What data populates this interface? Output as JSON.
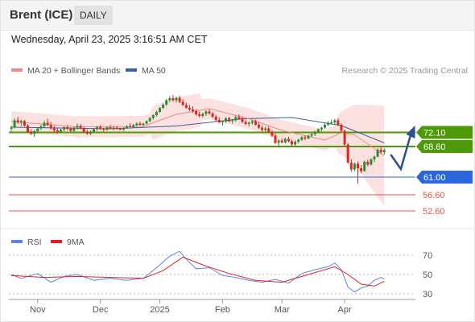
{
  "header": {
    "instrument": "Brent (ICE)",
    "timeframe": "DAILY",
    "datetime": "Wednesday, April 23, 2025 3:16:51 AM CET"
  },
  "legend": {
    "ma20_bb": "MA 20 + Bollinger Bands",
    "ma50": "MA 50",
    "credit": "Research © 2025 Trading Central",
    "rsi": "RSI",
    "rsi_ma": "9MA"
  },
  "colors": {
    "bull": "#2e8b2e",
    "bear": "#d9281e",
    "ma20": "#ee8888",
    "ma50": "#3a5fa6",
    "band_fill": "#fbdcdc",
    "green_level": "#4e9a06",
    "blue_level": "#2a66dd",
    "red_level": "#e85050",
    "rsi_line": "#5a86e0",
    "rsi_ma_line": "#e02020",
    "arrow": "#2b4f8f"
  },
  "chart_data": {
    "type": "candlestick",
    "y_range": [
      47.8,
      84.8
    ],
    "x_ticks": [
      "Nov",
      "Dec",
      "2025",
      "Feb",
      "Mar",
      "Apr"
    ],
    "levels": [
      {
        "value": 72.1,
        "label": "72.10",
        "kind": "resistance"
      },
      {
        "value": 68.6,
        "label": "68.60",
        "kind": "resistance"
      },
      {
        "value": 61.0,
        "label": "61.00",
        "kind": "pivot"
      },
      {
        "value": 56.6,
        "label": "56.60",
        "kind": "support"
      },
      {
        "value": 52.6,
        "label": "52.60",
        "kind": "support"
      }
    ],
    "scenario_path": [
      [
        0,
        66.6
      ],
      [
        3,
        63.0
      ],
      [
        6,
        71.8
      ]
    ],
    "candles": [
      [
        73.0,
        73.8,
        72.3,
        73.3
      ],
      [
        73.3,
        75.6,
        73.1,
        75.1
      ],
      [
        75.1,
        76.0,
        74.2,
        74.6
      ],
      [
        74.6,
        75.3,
        73.7,
        74.9
      ],
      [
        74.9,
        75.2,
        73.6,
        73.8
      ],
      [
        73.8,
        74.1,
        72.0,
        72.2
      ],
      [
        72.2,
        72.9,
        71.4,
        71.8
      ],
      [
        71.8,
        72.7,
        71.0,
        72.4
      ],
      [
        72.4,
        73.3,
        72.0,
        73.1
      ],
      [
        73.1,
        74.0,
        72.7,
        73.6
      ],
      [
        73.6,
        75.0,
        73.2,
        74.5
      ],
      [
        74.5,
        75.5,
        73.7,
        73.9
      ],
      [
        73.9,
        74.7,
        72.8,
        73.1
      ],
      [
        73.1,
        73.8,
        72.0,
        72.6
      ],
      [
        72.6,
        73.1,
        71.8,
        72.3
      ],
      [
        72.3,
        73.0,
        71.9,
        72.8
      ],
      [
        72.8,
        73.6,
        72.4,
        73.4
      ],
      [
        73.4,
        73.9,
        72.6,
        73.0
      ],
      [
        73.0,
        73.4,
        72.3,
        72.5
      ],
      [
        72.5,
        73.5,
        72.3,
        73.3
      ],
      [
        73.3,
        74.3,
        72.8,
        73.7
      ],
      [
        73.7,
        74.2,
        72.8,
        73.1
      ],
      [
        73.1,
        73.5,
        72.0,
        72.3
      ],
      [
        72.3,
        72.8,
        71.5,
        71.8
      ],
      [
        71.8,
        72.6,
        71.4,
        72.2
      ],
      [
        72.2,
        73.2,
        72.0,
        72.9
      ],
      [
        72.9,
        73.6,
        72.5,
        73.5
      ],
      [
        73.5,
        73.9,
        72.7,
        73.0
      ],
      [
        73.0,
        73.3,
        72.3,
        72.8
      ],
      [
        72.8,
        73.5,
        72.5,
        73.4
      ],
      [
        73.4,
        73.9,
        72.9,
        73.1
      ],
      [
        73.1,
        73.7,
        72.6,
        73.3
      ],
      [
        73.3,
        73.7,
        72.8,
        73.0
      ],
      [
        73.0,
        73.3,
        72.6,
        72.8
      ],
      [
        72.8,
        73.4,
        72.5,
        73.2
      ],
      [
        73.2,
        73.9,
        73.0,
        73.6
      ],
      [
        73.6,
        74.4,
        73.2,
        73.4
      ],
      [
        73.4,
        74.2,
        73.2,
        73.9
      ],
      [
        73.9,
        74.6,
        73.6,
        74.3
      ],
      [
        74.3,
        74.8,
        73.8,
        74.0
      ],
      [
        74.0,
        74.5,
        73.6,
        74.3
      ],
      [
        74.3,
        75.1,
        74.1,
        74.9
      ],
      [
        74.9,
        75.9,
        74.6,
        75.7
      ],
      [
        75.7,
        76.6,
        75.3,
        76.4
      ],
      [
        76.4,
        77.5,
        76.0,
        77.2
      ],
      [
        77.2,
        78.4,
        77.0,
        78.2
      ],
      [
        78.2,
        79.3,
        77.9,
        79.0
      ],
      [
        79.0,
        80.4,
        78.7,
        80.1
      ],
      [
        80.1,
        81.1,
        79.6,
        80.6
      ],
      [
        80.6,
        81.4,
        79.8,
        80.1
      ],
      [
        80.1,
        81.0,
        79.5,
        80.7
      ],
      [
        80.7,
        81.2,
        79.4,
        79.7
      ],
      [
        79.7,
        80.3,
        78.7,
        78.9
      ],
      [
        78.9,
        79.5,
        78.0,
        78.2
      ],
      [
        78.2,
        78.9,
        77.4,
        77.8
      ],
      [
        77.8,
        78.6,
        77.0,
        77.4
      ],
      [
        77.4,
        77.9,
        76.3,
        76.6
      ],
      [
        76.6,
        77.3,
        75.8,
        76.2
      ],
      [
        76.2,
        77.0,
        75.8,
        76.7
      ],
      [
        76.7,
        77.6,
        76.2,
        77.3
      ],
      [
        77.3,
        77.8,
        76.5,
        76.8
      ],
      [
        76.8,
        77.2,
        75.7,
        76.0
      ],
      [
        76.0,
        76.5,
        74.8,
        75.2
      ],
      [
        75.2,
        75.8,
        74.4,
        74.6
      ],
      [
        74.6,
        75.1,
        73.8,
        74.8
      ],
      [
        74.8,
        75.9,
        74.5,
        75.6
      ],
      [
        75.6,
        76.0,
        74.6,
        74.9
      ],
      [
        74.9,
        75.5,
        74.3,
        75.1
      ],
      [
        75.1,
        76.3,
        74.8,
        75.9
      ],
      [
        75.9,
        76.6,
        75.2,
        75.5
      ],
      [
        75.5,
        76.0,
        74.4,
        74.7
      ],
      [
        74.7,
        75.3,
        73.9,
        74.2
      ],
      [
        74.2,
        74.8,
        73.5,
        74.5
      ],
      [
        74.5,
        75.2,
        74.0,
        74.9
      ],
      [
        74.9,
        75.3,
        73.8,
        74.0
      ],
      [
        74.0,
        74.6,
        73.0,
        73.3
      ],
      [
        73.3,
        73.9,
        72.3,
        72.7
      ],
      [
        72.7,
        73.5,
        72.2,
        73.1
      ],
      [
        73.1,
        73.6,
        72.0,
        72.2
      ],
      [
        72.2,
        72.7,
        71.0,
        71.3
      ],
      [
        71.3,
        71.8,
        69.2,
        69.5
      ],
      [
        69.5,
        70.4,
        68.8,
        70.1
      ],
      [
        70.1,
        70.6,
        69.3,
        69.6
      ],
      [
        69.6,
        70.8,
        69.3,
        70.5
      ],
      [
        70.5,
        71.0,
        69.6,
        69.9
      ],
      [
        69.9,
        70.3,
        68.7,
        69.1
      ],
      [
        69.1,
        70.2,
        68.8,
        69.8
      ],
      [
        69.8,
        70.5,
        69.4,
        70.3
      ],
      [
        70.3,
        71.2,
        70.0,
        70.9
      ],
      [
        70.9,
        71.4,
        70.2,
        70.6
      ],
      [
        70.6,
        71.5,
        70.4,
        71.3
      ],
      [
        71.3,
        72.0,
        70.9,
        71.7
      ],
      [
        71.7,
        72.5,
        71.2,
        72.2
      ],
      [
        72.2,
        73.1,
        71.9,
        72.9
      ],
      [
        72.9,
        73.5,
        72.3,
        73.3
      ],
      [
        73.3,
        74.3,
        73.0,
        74.0
      ],
      [
        74.0,
        74.9,
        73.7,
        74.5
      ],
      [
        74.5,
        75.3,
        74.0,
        74.6
      ],
      [
        74.6,
        75.5,
        74.2,
        75.1
      ],
      [
        75.1,
        75.6,
        73.7,
        74.0
      ],
      [
        74.0,
        74.4,
        72.2,
        72.5
      ],
      [
        72.5,
        72.8,
        68.7,
        69.1
      ],
      [
        69.1,
        69.4,
        64.3,
        64.6
      ],
      [
        64.6,
        65.4,
        62.3,
        62.9
      ],
      [
        62.9,
        64.6,
        62.5,
        64.3
      ],
      [
        64.3,
        64.9,
        59.3,
        63.2
      ],
      [
        63.2,
        64.0,
        62.0,
        62.5
      ],
      [
        62.5,
        65.1,
        62.3,
        64.8
      ],
      [
        64.8,
        65.3,
        63.7,
        64.1
      ],
      [
        64.1,
        65.7,
        63.9,
        65.4
      ],
      [
        65.4,
        66.3,
        64.7,
        66.1
      ],
      [
        66.1,
        68.2,
        65.9,
        67.8
      ],
      [
        67.8,
        68.4,
        66.8,
        67.2
      ],
      [
        67.2,
        68.1,
        66.6,
        67.7
      ]
    ],
    "ma20": [
      [
        0,
        74.8
      ],
      [
        20,
        73.5
      ],
      [
        40,
        73.6
      ],
      [
        50,
        76.6
      ],
      [
        60,
        78.0
      ],
      [
        72,
        75.5
      ],
      [
        82,
        72.6
      ],
      [
        95,
        70.2
      ],
      [
        100,
        72.0
      ],
      [
        104,
        71.5
      ],
      [
        108,
        69.2
      ],
      [
        113,
        66.3
      ]
    ],
    "ma50": [
      [
        0,
        73.4
      ],
      [
        30,
        73.0
      ],
      [
        50,
        73.7
      ],
      [
        70,
        75.5
      ],
      [
        85,
        75.8
      ],
      [
        100,
        73.8
      ],
      [
        113,
        69.5
      ]
    ],
    "rsi": {
      "range": [
        20,
        80
      ],
      "ticks": [
        30,
        50,
        70
      ],
      "rsi_values": [
        [
          0,
          50
        ],
        [
          3,
          46
        ],
        [
          8,
          51
        ],
        [
          12,
          42
        ],
        [
          16,
          48
        ],
        [
          20,
          50
        ],
        [
          25,
          44
        ],
        [
          30,
          46
        ],
        [
          35,
          44
        ],
        [
          40,
          46
        ],
        [
          44,
          57
        ],
        [
          48,
          69
        ],
        [
          51,
          74
        ],
        [
          53,
          66
        ],
        [
          56,
          56
        ],
        [
          60,
          57
        ],
        [
          64,
          49
        ],
        [
          68,
          47
        ],
        [
          72,
          44
        ],
        [
          76,
          42
        ],
        [
          80,
          45
        ],
        [
          84,
          41
        ],
        [
          88,
          51
        ],
        [
          92,
          55
        ],
        [
          96,
          58
        ],
        [
          98,
          62
        ],
        [
          100,
          55
        ],
        [
          102,
          37
        ],
        [
          104,
          32
        ],
        [
          106,
          36
        ],
        [
          108,
          38
        ],
        [
          110,
          44
        ],
        [
          112,
          47
        ],
        [
          113,
          45
        ]
      ],
      "ma_values": [
        [
          0,
          49
        ],
        [
          10,
          47
        ],
        [
          20,
          48
        ],
        [
          30,
          47
        ],
        [
          40,
          46
        ],
        [
          46,
          54
        ],
        [
          52,
          68
        ],
        [
          58,
          60
        ],
        [
          66,
          51
        ],
        [
          74,
          44
        ],
        [
          82,
          42
        ],
        [
          90,
          50
        ],
        [
          98,
          58
        ],
        [
          102,
          50
        ],
        [
          106,
          40
        ],
        [
          110,
          38
        ],
        [
          113,
          43
        ]
      ]
    }
  }
}
